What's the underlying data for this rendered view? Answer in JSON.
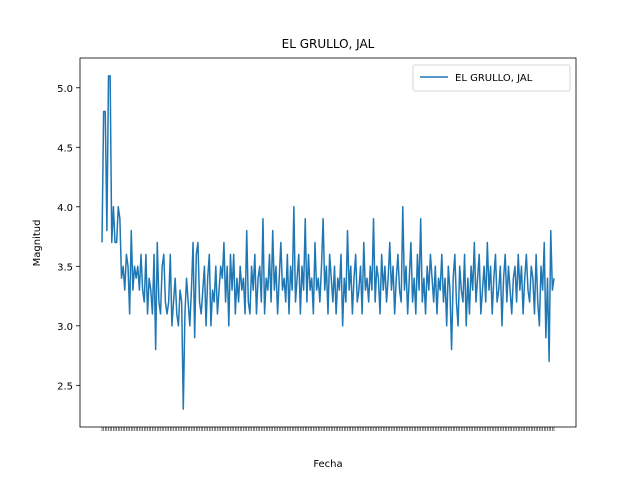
{
  "chart_data": {
    "type": "line",
    "title": "EL GRULLO, JAL",
    "xlabel": "Fecha",
    "ylabel": "Magnitud",
    "ylim": [
      2.15,
      5.25
    ],
    "yticks": [
      "2.5",
      "3.0",
      "3.5",
      "4.0",
      "4.5",
      "5.0"
    ],
    "legend": {
      "placement": "upper right"
    },
    "grid": false,
    "color": "#1f77b4",
    "series": [
      {
        "name": "EL GRULLO, JAL",
        "values": [
          3.7,
          4.8,
          4.8,
          3.8,
          5.1,
          5.1,
          3.7,
          4.0,
          3.7,
          3.7,
          4.0,
          3.9,
          3.4,
          3.5,
          3.3,
          3.6,
          3.5,
          3.1,
          3.8,
          3.3,
          3.5,
          3.4,
          3.5,
          3.3,
          3.6,
          3.3,
          3.2,
          3.6,
          3.1,
          3.4,
          3.3,
          3.1,
          3.6,
          2.8,
          3.7,
          3.2,
          3.1,
          3.5,
          3.6,
          3.2,
          3.1,
          3.2,
          3.6,
          3.0,
          3.2,
          3.4,
          3.1,
          3.0,
          3.3,
          3.2,
          2.3,
          3.1,
          3.4,
          3.2,
          3.0,
          3.3,
          3.7,
          2.9,
          3.6,
          3.7,
          3.2,
          3.1,
          3.3,
          3.5,
          3.0,
          3.4,
          3.6,
          3.0,
          3.3,
          3.2,
          3.5,
          3.1,
          3.3,
          3.5,
          3.4,
          3.7,
          3.2,
          3.5,
          3.0,
          3.6,
          3.3,
          3.6,
          3.1,
          3.4,
          3.2,
          3.5,
          3.3,
          3.4,
          3.1,
          3.8,
          3.2,
          3.1,
          3.5,
          3.3,
          3.6,
          3.1,
          3.4,
          3.5,
          3.2,
          3.9,
          3.1,
          3.4,
          3.3,
          3.6,
          3.2,
          3.8,
          3.3,
          3.5,
          3.1,
          3.4,
          3.7,
          3.3,
          3.4,
          3.2,
          3.6,
          3.1,
          3.5,
          3.3,
          4.0,
          3.2,
          3.4,
          3.6,
          3.1,
          3.5,
          3.3,
          3.9,
          3.2,
          3.6,
          3.3,
          3.4,
          3.1,
          3.7,
          3.3,
          3.4,
          3.2,
          3.5,
          3.9,
          3.3,
          3.5,
          3.1,
          3.6,
          3.4,
          3.2,
          3.5,
          3.1,
          3.4,
          3.3,
          3.6,
          3.0,
          3.4,
          3.2,
          3.8,
          3.3,
          3.5,
          3.1,
          3.4,
          3.6,
          3.2,
          3.3,
          3.5,
          3.1,
          3.7,
          3.3,
          3.4,
          3.2,
          3.5,
          3.3,
          3.9,
          3.2,
          3.5,
          3.4,
          3.1,
          3.6,
          3.3,
          3.5,
          3.2,
          3.4,
          3.7,
          3.3,
          3.5,
          3.1,
          3.4,
          3.6,
          3.3,
          3.2,
          4.0,
          3.3,
          3.5,
          3.1,
          3.4,
          3.7,
          3.2,
          3.4,
          3.1,
          3.6,
          3.3,
          3.9,
          3.2,
          3.4,
          3.1,
          3.5,
          3.3,
          3.6,
          3.4,
          3.2,
          3.5,
          3.1,
          3.4,
          3.3,
          3.6,
          3.2,
          3.4,
          3.0,
          3.5,
          3.3,
          2.8,
          3.4,
          3.6,
          3.2,
          3.0,
          3.5,
          3.3,
          3.2,
          3.6,
          3.0,
          3.4,
          3.1,
          3.5,
          3.3,
          3.7,
          3.2,
          3.4,
          3.6,
          3.1,
          3.3,
          3.5,
          3.2,
          3.7,
          3.3,
          3.5,
          3.1,
          3.4,
          3.6,
          3.2,
          3.3,
          3.5,
          3.0,
          3.4,
          3.6,
          3.2,
          3.5,
          3.3,
          3.1,
          3.4,
          3.5,
          3.2,
          3.6,
          3.3,
          3.5,
          3.1,
          3.4,
          3.6,
          3.3,
          3.2,
          3.5,
          3.4,
          3.1,
          3.6,
          3.2,
          3.0,
          3.5,
          3.3,
          3.7,
          2.9,
          3.4,
          2.7,
          3.8,
          3.3,
          3.4
        ]
      }
    ]
  }
}
